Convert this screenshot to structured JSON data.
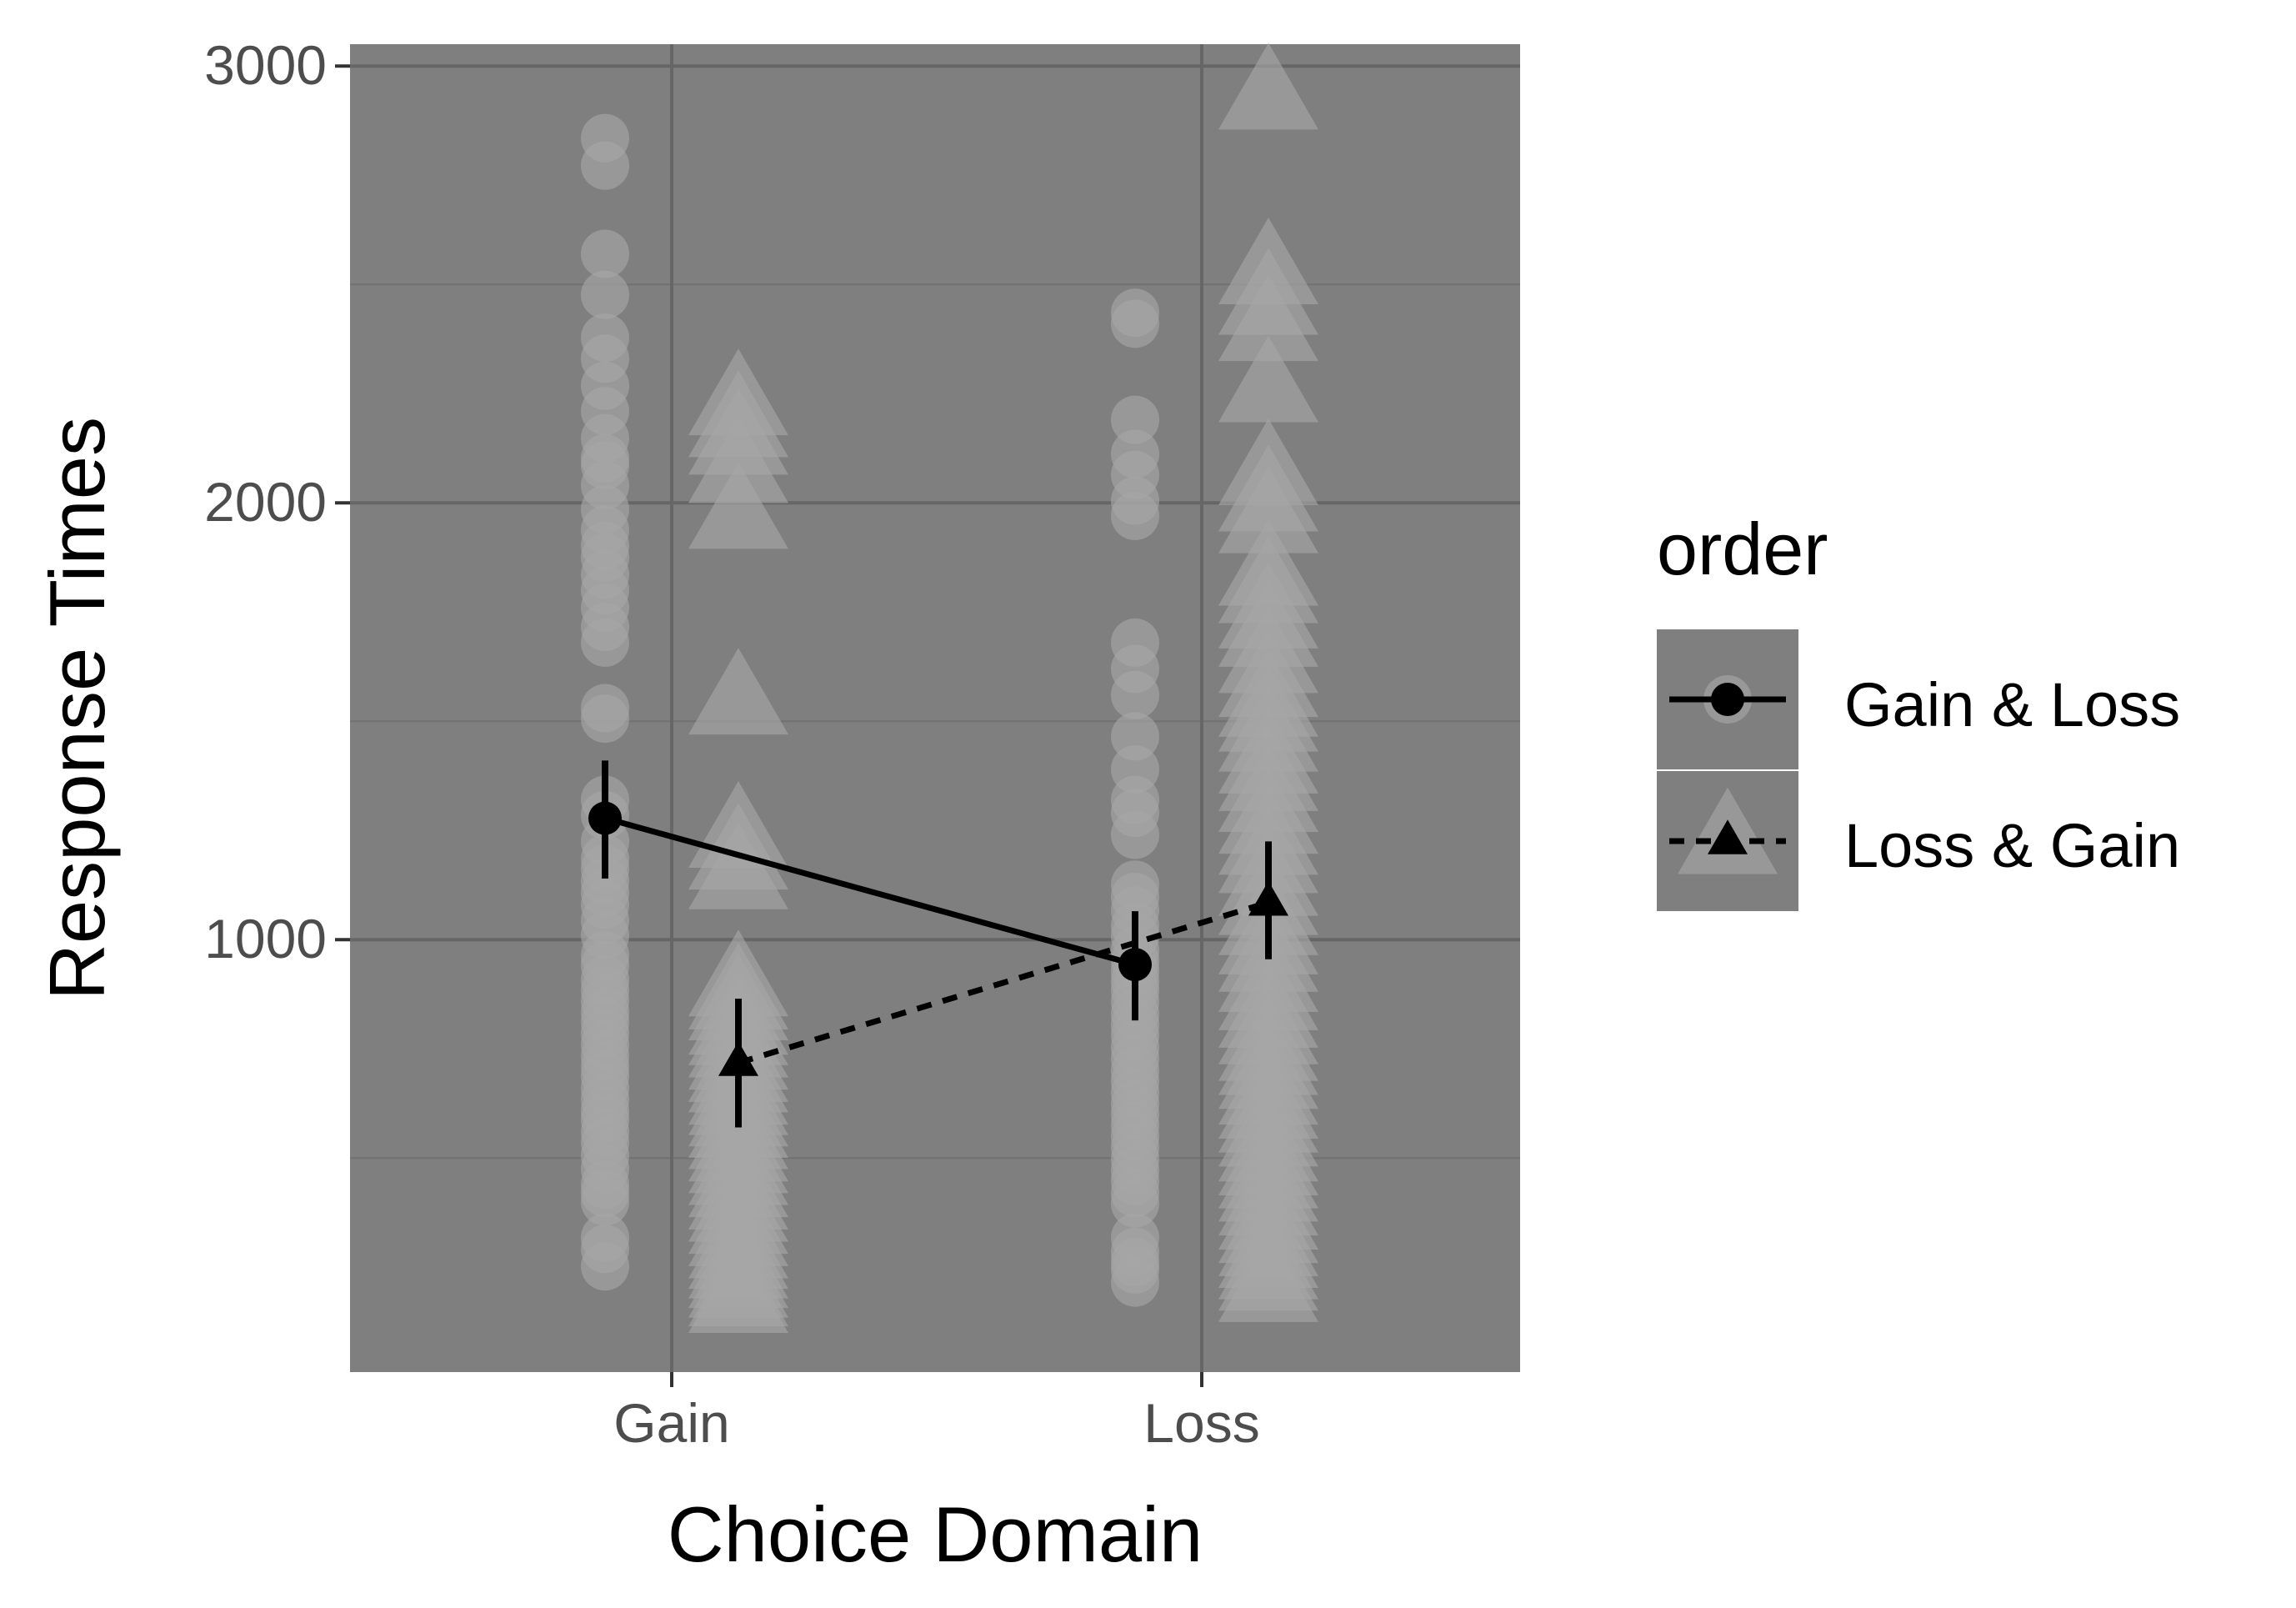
{
  "chart_data": {
    "type": "scatter",
    "xlabel": "Choice Domain",
    "ylabel": "Response Times",
    "categories": [
      "Gain",
      "Loss"
    ],
    "y_ticks": [
      "1000",
      "2000",
      "3000"
    ],
    "ylim": [
      10,
      3050
    ],
    "grid": true,
    "legend": {
      "title": "order",
      "position": "right"
    },
    "colors": {
      "panel": "#7f7f7f",
      "grid_major": "#666666",
      "grid_minor": "#717171",
      "raw_points": "#a6a6a6",
      "summary": "#000000"
    },
    "series": [
      {
        "name": "Gain & Loss",
        "shape": "circle",
        "line_style": "solid",
        "means": [
          1278,
          943
        ],
        "errors_low": [
          1140,
          815
        ],
        "errors_high": [
          1410,
          1065
        ],
        "raw": [
          [
            2835,
            2772,
            2570,
            2476,
            2378,
            2330,
            2268,
            2210,
            2148,
            2102,
            2086,
            2040,
            1985,
            1938,
            1902,
            1875,
            1836,
            1800,
            1760,
            1716,
            1680,
            1530,
            1506,
            1320,
            1285,
            1225,
            1185,
            1162,
            1134,
            1108,
            1080,
            1044,
            1010,
            965,
            942,
            908,
            885,
            860,
            834,
            812,
            786,
            760,
            734,
            710,
            688,
            660,
            634,
            608,
            588,
            560,
            536,
            506,
            475,
            440,
            420,
            400,
            318,
            292,
            252
          ],
          [
            2435,
            2410,
            2190,
            2112,
            2064,
            2005,
            1970,
            1680,
            1620,
            1560,
            1465,
            1390,
            1320,
            1290,
            1240,
            1126,
            1098,
            1067,
            1032,
            1008,
            975,
            951,
            928,
            905,
            884,
            858,
            830,
            806,
            782,
            754,
            728,
            700,
            676,
            650,
            624,
            600,
            575,
            550,
            525,
            498,
            472,
            448,
            420,
            396,
            318,
            285,
            262,
            245,
            215
          ]
        ]
      },
      {
        "name": "Loss & Gain",
        "shape": "triangle",
        "line_style": "dashed",
        "means": [
          718,
          1085
        ],
        "errors_low": [
          570,
          955
        ],
        "errors_high": [
          865,
          1225
        ],
        "raw": [
          [
            2230,
            2180,
            2140,
            2075,
            1970,
            1545,
            1240,
            1190,
            1145,
            900,
            870,
            845,
            812,
            788,
            760,
            732,
            704,
            680,
            652,
            628,
            602,
            576,
            550,
            522,
            495,
            468,
            440,
            412,
            384,
            356,
            328,
            300,
            276,
            254,
            232,
            210,
            190,
            175
          ],
          [
            2930,
            2530,
            2460,
            2400,
            2260,
            2070,
            2010,
            1960,
            1840,
            1800,
            1742,
            1700,
            1640,
            1585,
            1540,
            1506,
            1460,
            1410,
            1370,
            1322,
            1272,
            1224,
            1182,
            1130,
            1086,
            1040,
            996,
            956,
            910,
            868,
            828,
            790,
            752,
            720,
            688,
            652,
            620,
            588,
            556,
            522,
            490,
            460,
            430,
            398,
            366,
            335,
            305,
            278,
            252,
            226,
            200
          ]
        ]
      }
    ]
  }
}
